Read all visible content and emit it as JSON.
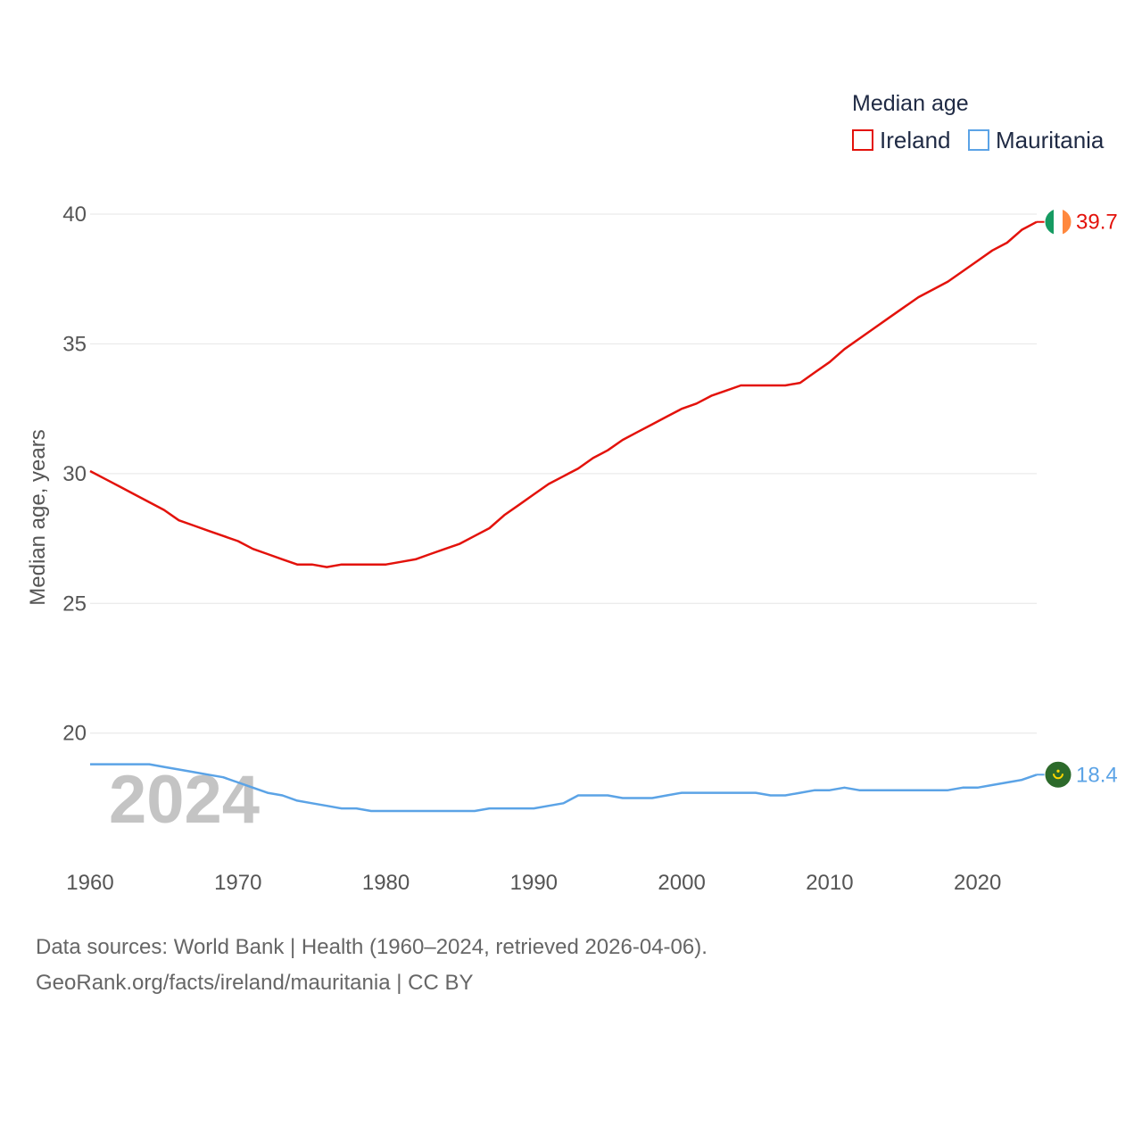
{
  "chart_data": {
    "type": "line",
    "ylabel": "Median age, years",
    "xlabel": "",
    "xlim": [
      1960,
      2024
    ],
    "ylim": [
      17,
      40
    ],
    "x_ticks": [
      1960,
      1970,
      1980,
      1990,
      2000,
      2010,
      2020
    ],
    "y_ticks": [
      20,
      25,
      30,
      35,
      40
    ],
    "grid": true,
    "watermark_year": "2024",
    "legend": {
      "title": "Median age",
      "placement": "top-right"
    },
    "x": [
      1960,
      1961,
      1962,
      1963,
      1964,
      1965,
      1966,
      1967,
      1968,
      1969,
      1970,
      1971,
      1972,
      1973,
      1974,
      1975,
      1976,
      1977,
      1978,
      1979,
      1980,
      1981,
      1982,
      1983,
      1984,
      1985,
      1986,
      1987,
      1988,
      1989,
      1990,
      1991,
      1992,
      1993,
      1994,
      1995,
      1996,
      1997,
      1998,
      1999,
      2000,
      2001,
      2002,
      2003,
      2004,
      2005,
      2006,
      2007,
      2008,
      2009,
      2010,
      2011,
      2012,
      2013,
      2014,
      2015,
      2016,
      2017,
      2018,
      2019,
      2020,
      2021,
      2022,
      2023,
      2024
    ],
    "series": [
      {
        "name": "Ireland",
        "color": "#e3120b",
        "end_label": "39.7",
        "flag": "ireland-flag",
        "values": [
          30.1,
          29.8,
          29.5,
          29.2,
          28.9,
          28.6,
          28.2,
          28.0,
          27.8,
          27.6,
          27.4,
          27.1,
          26.9,
          26.7,
          26.5,
          26.5,
          26.4,
          26.5,
          26.5,
          26.5,
          26.5,
          26.6,
          26.7,
          26.9,
          27.1,
          27.3,
          27.6,
          27.9,
          28.4,
          28.8,
          29.2,
          29.6,
          29.9,
          30.2,
          30.6,
          30.9,
          31.3,
          31.6,
          31.9,
          32.2,
          32.5,
          32.7,
          33.0,
          33.2,
          33.4,
          33.4,
          33.4,
          33.4,
          33.5,
          33.9,
          34.3,
          34.8,
          35.2,
          35.6,
          36.0,
          36.4,
          36.8,
          37.1,
          37.4,
          37.8,
          38.2,
          38.6,
          38.9,
          39.4,
          39.7
        ]
      },
      {
        "name": "Mauritania",
        "color": "#5ba3e6",
        "end_label": "18.4",
        "flag": "mauritania-flag",
        "values": [
          18.8,
          18.8,
          18.8,
          18.8,
          18.8,
          18.7,
          18.6,
          18.5,
          18.4,
          18.3,
          18.1,
          17.9,
          17.7,
          17.6,
          17.4,
          17.3,
          17.2,
          17.1,
          17.1,
          17.0,
          17.0,
          17.0,
          17.0,
          17.0,
          17.0,
          17.0,
          17.0,
          17.1,
          17.1,
          17.1,
          17.1,
          17.2,
          17.3,
          17.6,
          17.6,
          17.6,
          17.5,
          17.5,
          17.5,
          17.6,
          17.7,
          17.7,
          17.7,
          17.7,
          17.7,
          17.7,
          17.6,
          17.6,
          17.7,
          17.8,
          17.8,
          17.9,
          17.8,
          17.8,
          17.8,
          17.8,
          17.8,
          17.8,
          17.8,
          17.9,
          17.9,
          18.0,
          18.1,
          18.2,
          18.4
        ]
      }
    ]
  },
  "footer": {
    "line1": "Data sources: World Bank | Health (1960–2024, retrieved 2026-04-06).",
    "line2": "GeoRank.org/facts/ireland/mauritania | CC BY"
  }
}
